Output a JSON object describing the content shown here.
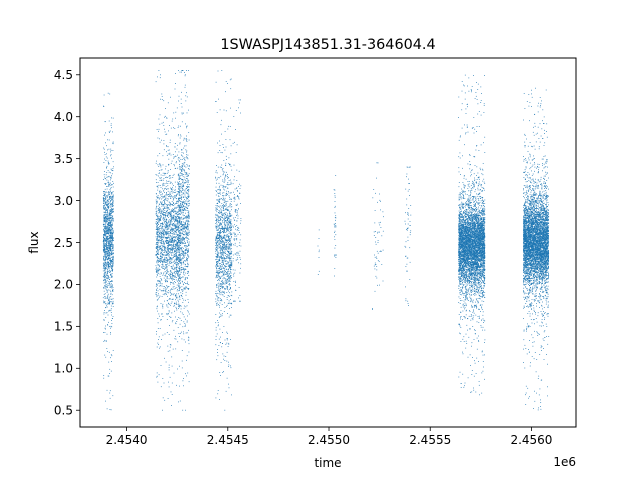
{
  "chart_data": {
    "type": "scatter",
    "title": "1SWASPJ143851.31-364604.4",
    "xlabel": "time",
    "ylabel": "flux",
    "x_offset_label": "1e6",
    "xlim": [
      2453770,
      2456220
    ],
    "ylim": [
      0.3,
      4.7
    ],
    "x_ticks": [
      2454000,
      2454500,
      2455000,
      2455500,
      2456000
    ],
    "x_tick_labels": [
      "2.4540",
      "2.4545",
      "2.4550",
      "2.4555",
      "2.4560"
    ],
    "y_ticks": [
      0.5,
      1.0,
      1.5,
      2.0,
      2.5,
      3.0,
      3.5,
      4.0,
      4.5
    ],
    "y_tick_labels": [
      "0.5",
      "1.0",
      "1.5",
      "2.0",
      "2.5",
      "3.0",
      "3.5",
      "4.0",
      "4.5"
    ],
    "grid": false,
    "marker_color": "#1f77b4",
    "series": [
      {
        "clusters": [
          {
            "t_start": 2453885,
            "t_end": 2453935,
            "center": 2.55,
            "spread": 0.42,
            "n": 1400,
            "min": 0.45,
            "max": 4.28
          },
          {
            "t_start": 2454145,
            "t_end": 2454265,
            "center": 2.55,
            "spread": 0.45,
            "n": 1900,
            "min": 0.5,
            "max": 4.55
          },
          {
            "t_start": 2454255,
            "t_end": 2454310,
            "center": 2.7,
            "spread": 0.6,
            "n": 900,
            "min": 0.5,
            "max": 4.55
          },
          {
            "t_start": 2454440,
            "t_end": 2454520,
            "center": 2.5,
            "spread": 0.45,
            "n": 1300,
            "min": 0.5,
            "max": 4.55
          },
          {
            "t_start": 2454525,
            "t_end": 2454565,
            "center": 2.6,
            "spread": 0.55,
            "n": 150,
            "min": 1.8,
            "max": 4.2
          },
          {
            "t_start": 2454945,
            "t_end": 2454955,
            "center": 2.4,
            "spread": 0.2,
            "n": 8,
            "min": 2.1,
            "max": 2.65
          },
          {
            "t_start": 2455025,
            "t_end": 2455035,
            "center": 2.65,
            "spread": 0.35,
            "n": 35,
            "min": 2.1,
            "max": 3.3
          },
          {
            "t_start": 2455215,
            "t_end": 2455270,
            "center": 2.5,
            "spread": 0.35,
            "n": 60,
            "min": 1.7,
            "max": 3.45
          },
          {
            "t_start": 2455375,
            "t_end": 2455405,
            "center": 2.6,
            "spread": 0.45,
            "n": 60,
            "min": 1.75,
            "max": 3.4
          },
          {
            "t_start": 2455640,
            "t_end": 2455770,
            "center": 2.45,
            "spread": 0.28,
            "n": 5200,
            "min": 0.65,
            "max": 4.5
          },
          {
            "t_start": 2455960,
            "t_end": 2456085,
            "center": 2.5,
            "spread": 0.3,
            "n": 5200,
            "min": 0.5,
            "max": 4.35
          }
        ]
      }
    ]
  }
}
